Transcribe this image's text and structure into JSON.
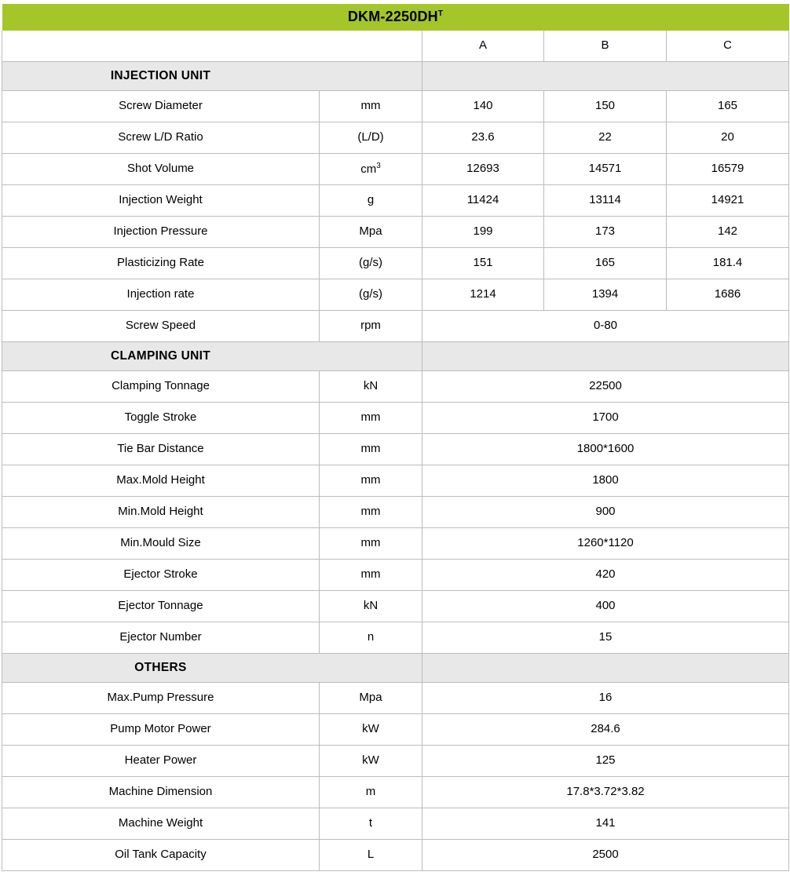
{
  "title": {
    "model": "DKM-2250DH",
    "superscript": "T"
  },
  "header": {
    "spec_column": "",
    "unit_column": "",
    "variants": [
      "A",
      "B",
      "C"
    ]
  },
  "colors": {
    "title_background": "#a5c628",
    "section_background": "#e8e8e8",
    "border": "#bcbcbc",
    "text": "#000000"
  },
  "sections": [
    {
      "name": "INJECTION UNIT",
      "rows": [
        {
          "label": "Screw Diameter",
          "unit": "mm",
          "merged": false,
          "values": [
            "140",
            "150",
            "165"
          ]
        },
        {
          "label": "Screw L/D Ratio",
          "unit": "(L/D)",
          "merged": false,
          "values": [
            "23.6",
            "22",
            "20"
          ]
        },
        {
          "label": "Shot Volume",
          "unit": "cm³",
          "merged": false,
          "values": [
            "12693",
            "14571",
            "16579"
          ]
        },
        {
          "label": "Injection Weight",
          "unit": "g",
          "merged": false,
          "values": [
            "11424",
            "13114",
            "14921"
          ]
        },
        {
          "label": "Injection Pressure",
          "unit": "Mpa",
          "merged": false,
          "values": [
            "199",
            "173",
            "142"
          ]
        },
        {
          "label": "Plasticizing Rate",
          "unit": "(g/s)",
          "merged": false,
          "values": [
            "151",
            "165",
            "181.4"
          ]
        },
        {
          "label": "Injection rate",
          "unit": "(g/s)",
          "merged": false,
          "values": [
            "1214",
            "1394",
            "1686"
          ]
        },
        {
          "label": "Screw Speed",
          "unit": "rpm",
          "merged": true,
          "values": [
            "0-80"
          ]
        }
      ]
    },
    {
      "name": "CLAMPING UNIT",
      "rows": [
        {
          "label": "Clamping Tonnage",
          "unit": "kN",
          "merged": true,
          "values": [
            "22500"
          ]
        },
        {
          "label": "Toggle Stroke",
          "unit": "mm",
          "merged": true,
          "values": [
            "1700"
          ]
        },
        {
          "label": "Tie Bar Distance",
          "unit": "mm",
          "merged": true,
          "values": [
            "1800*1600"
          ]
        },
        {
          "label": "Max.Mold Height",
          "unit": "mm",
          "merged": true,
          "values": [
            "1800"
          ]
        },
        {
          "label": "Min.Mold Height",
          "unit": "mm",
          "merged": true,
          "values": [
            "900"
          ]
        },
        {
          "label": "Min.Mould Size",
          "unit": "mm",
          "merged": true,
          "values": [
            "1260*1120"
          ]
        },
        {
          "label": "Ejector Stroke",
          "unit": "mm",
          "merged": true,
          "values": [
            "420"
          ]
        },
        {
          "label": "Ejector Tonnage",
          "unit": "kN",
          "merged": true,
          "values": [
            "400"
          ]
        },
        {
          "label": "Ejector Number",
          "unit": "n",
          "merged": true,
          "values": [
            "15"
          ]
        }
      ]
    },
    {
      "name": "OTHERS",
      "rows": [
        {
          "label": "Max.Pump Pressure",
          "unit": "Mpa",
          "merged": true,
          "values": [
            "16"
          ]
        },
        {
          "label": "Pump Motor Power",
          "unit": "kW",
          "merged": true,
          "values": [
            "284.6"
          ]
        },
        {
          "label": "Heater Power",
          "unit": "kW",
          "merged": true,
          "values": [
            "125"
          ]
        },
        {
          "label": "Machine Dimension",
          "unit": "m",
          "merged": true,
          "values": [
            "17.8*3.72*3.82"
          ]
        },
        {
          "label": "Machine Weight",
          "unit": "t",
          "merged": true,
          "values": [
            "141"
          ]
        },
        {
          "label": "Oil Tank Capacity",
          "unit": "L",
          "merged": true,
          "values": [
            "2500"
          ]
        }
      ]
    }
  ]
}
